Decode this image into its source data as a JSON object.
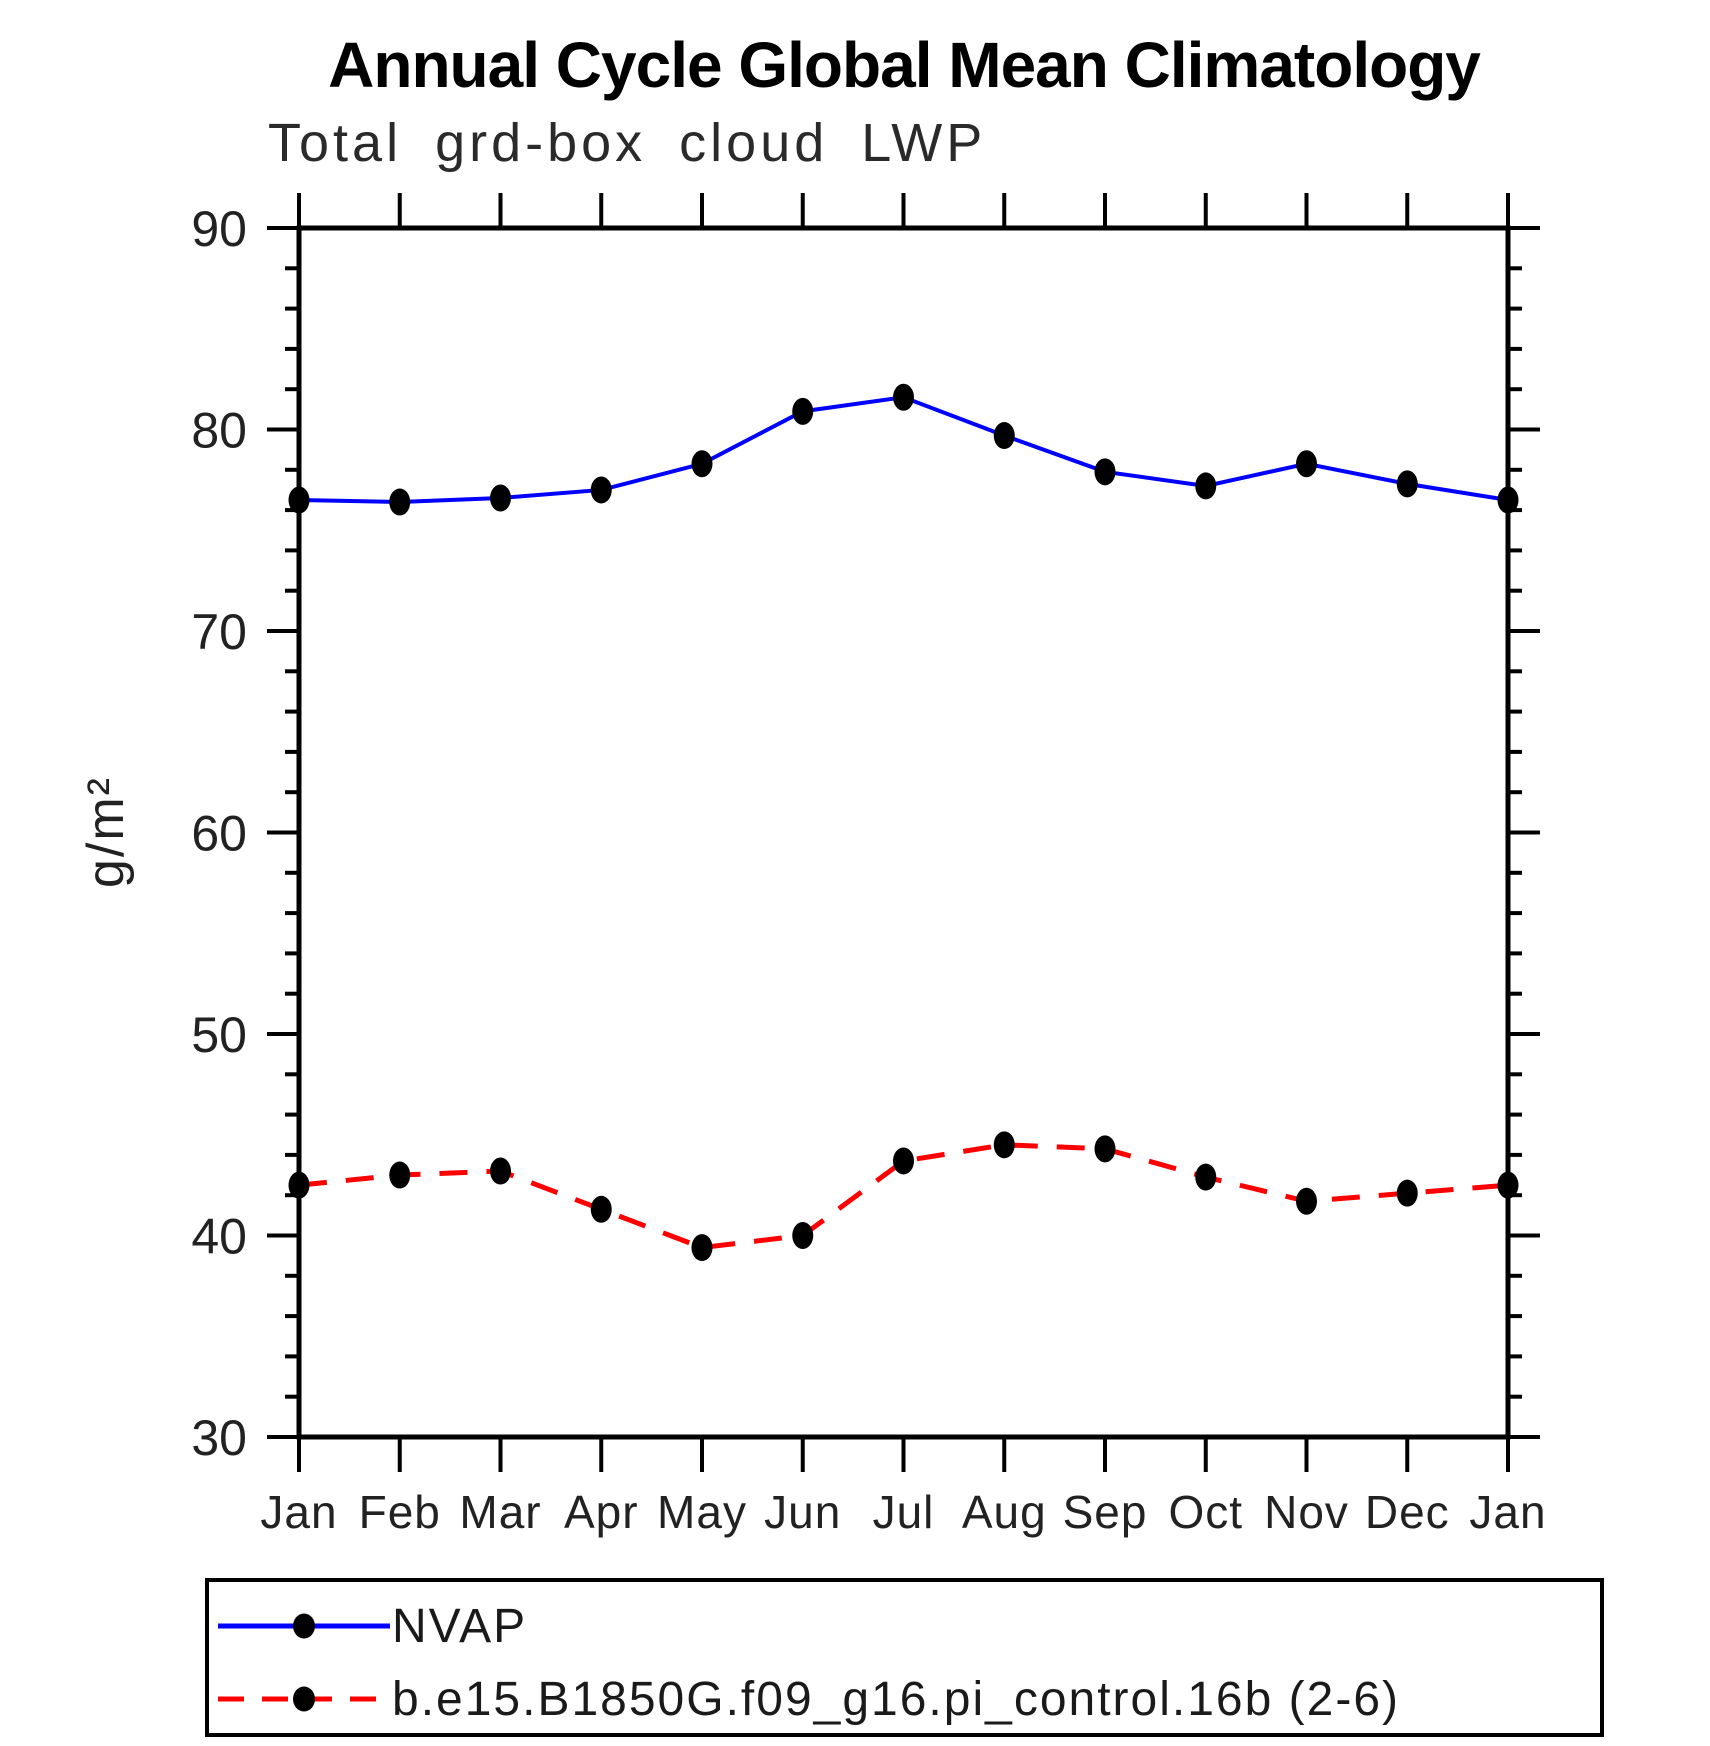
{
  "chart_data": {
    "type": "line",
    "title": "Annual Cycle Global Mean Climatology",
    "subtitle": "Total grd-box cloud LWP",
    "ylabel": "g/m²",
    "ylim": [
      30,
      90
    ],
    "ytick_major": 10,
    "ytick_minor": 2,
    "grid": false,
    "legend_position": "bottom-left-box",
    "marker_color": "#000000",
    "categories": [
      "Jan",
      "Feb",
      "Mar",
      "Apr",
      "May",
      "Jun",
      "Jul",
      "Aug",
      "Sep",
      "Oct",
      "Nov",
      "Dec",
      "Jan"
    ],
    "series": [
      {
        "name": "NVAP",
        "color": "#0000ff",
        "style": "solid",
        "values": [
          76.5,
          76.4,
          76.6,
          77.0,
          78.3,
          80.9,
          81.6,
          79.7,
          77.9,
          77.2,
          78.3,
          77.3,
          76.5
        ]
      },
      {
        "name": "b.e15.B1850G.f09_g16.pi_control.16b (2-6)",
        "color": "#ff0000",
        "style": "dashed",
        "values": [
          42.5,
          43.0,
          43.2,
          41.3,
          39.4,
          40.0,
          43.7,
          44.5,
          44.3,
          42.9,
          41.7,
          42.1,
          42.5
        ]
      }
    ]
  }
}
